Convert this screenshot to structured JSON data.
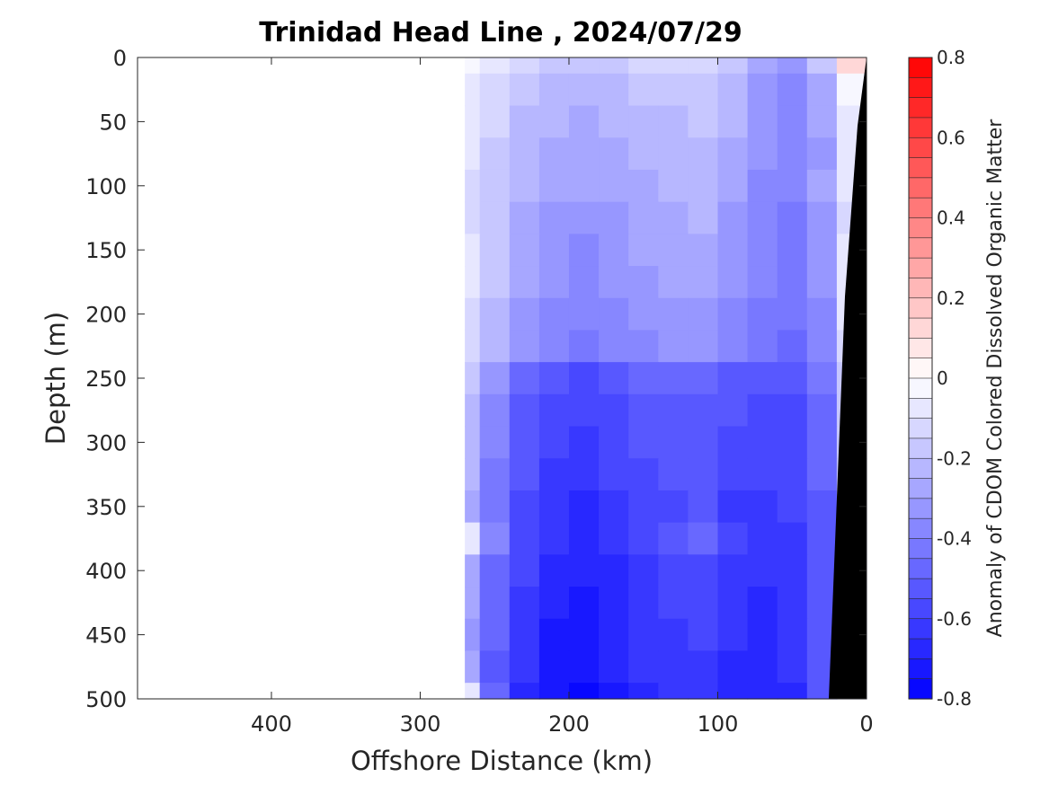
{
  "chart_data": {
    "type": "heatmap",
    "title": "Trinidad Head Line , 2024/07/29",
    "xlabel": "Offshore Distance (km)",
    "ylabel": "Depth (m)",
    "xlim": [
      490,
      0
    ],
    "ylim": [
      0,
      500
    ],
    "x_reversed": true,
    "y_reversed": true,
    "x_ticks": [
      "400",
      "300",
      "200",
      "100",
      "0"
    ],
    "y_ticks": [
      "0",
      "50",
      "100",
      "150",
      "200",
      "250",
      "300",
      "350",
      "400",
      "450",
      "500"
    ],
    "colorbar": {
      "label": "Anomaly of CDOM Colored Dissolved Organic Matter",
      "range": [
        -0.8,
        0.8
      ],
      "tick_labels": [
        "0.8",
        "0.6",
        "0.4",
        "0.2",
        "0",
        "-0.2",
        "-0.4",
        "-0.6",
        "-0.8"
      ],
      "tick_values": [
        0.8,
        0.6,
        0.4,
        0.2,
        0,
        -0.2,
        -0.4,
        -0.6,
        -0.8
      ],
      "levels": 32,
      "low_color": "#0000ff",
      "mid_color": "#ffffff",
      "high_color": "#ff0000"
    },
    "data_extent_km": [
      270,
      0
    ],
    "depth_levels": [
      0,
      25,
      50,
      75,
      100,
      125,
      150,
      175,
      200,
      225,
      250,
      275,
      300,
      325,
      350,
      375,
      400,
      425,
      450,
      475,
      500
    ],
    "column_km": [
      270,
      250,
      230,
      210,
      190,
      170,
      150,
      130,
      110,
      90,
      70,
      50,
      30,
      10
    ],
    "values": [
      [
        -0.05,
        -0.1,
        -0.15,
        -0.2,
        -0.2,
        -0.18,
        -0.15,
        -0.15,
        -0.12,
        -0.2,
        -0.3,
        -0.35,
        -0.2,
        0.1
      ],
      [
        -0.08,
        -0.12,
        -0.2,
        -0.22,
        -0.25,
        -0.22,
        -0.2,
        -0.2,
        -0.18,
        -0.25,
        -0.35,
        -0.38,
        -0.28,
        -0.05
      ],
      [
        -0.1,
        -0.15,
        -0.22,
        -0.25,
        -0.28,
        -0.25,
        -0.22,
        -0.22,
        -0.2,
        -0.25,
        -0.32,
        -0.38,
        -0.3,
        -0.1
      ],
      [
        -0.1,
        -0.18,
        -0.25,
        -0.28,
        -0.3,
        -0.28,
        -0.25,
        -0.25,
        -0.22,
        -0.28,
        -0.35,
        -0.4,
        -0.32,
        -0.1
      ],
      [
        -0.12,
        -0.2,
        -0.25,
        -0.3,
        -0.3,
        -0.28,
        -0.28,
        -0.25,
        -0.25,
        -0.3,
        -0.38,
        -0.4,
        -0.3,
        -0.1
      ],
      [
        -0.12,
        -0.2,
        -0.28,
        -0.32,
        -0.35,
        -0.32,
        -0.28,
        -0.28,
        -0.25,
        -0.32,
        -0.38,
        -0.42,
        -0.32,
        -0.12
      ],
      [
        -0.1,
        -0.18,
        -0.28,
        -0.35,
        -0.38,
        -0.35,
        -0.3,
        -0.28,
        -0.28,
        -0.32,
        -0.4,
        -0.42,
        -0.35,
        -0.1
      ],
      [
        -0.1,
        -0.2,
        -0.3,
        -0.35,
        -0.38,
        -0.35,
        -0.32,
        -0.3,
        -0.3,
        -0.35,
        -0.4,
        -0.45,
        -0.35,
        -0.1
      ],
      [
        -0.12,
        -0.22,
        -0.32,
        -0.38,
        -0.4,
        -0.38,
        -0.35,
        -0.32,
        -0.32,
        -0.38,
        -0.42,
        -0.45,
        -0.38,
        -0.1
      ],
      [
        -0.15,
        -0.25,
        -0.35,
        -0.4,
        -0.42,
        -0.4,
        -0.38,
        -0.35,
        -0.35,
        -0.4,
        -0.45,
        -0.48,
        -0.4,
        -0.15
      ],
      [
        -0.2,
        -0.35,
        -0.5,
        -0.55,
        -0.6,
        -0.55,
        -0.5,
        -0.5,
        -0.5,
        -0.55,
        -0.55,
        -0.55,
        -0.45,
        -0.2
      ],
      [
        -0.22,
        -0.38,
        -0.52,
        -0.58,
        -0.6,
        -0.58,
        -0.55,
        -0.52,
        -0.52,
        -0.55,
        -0.58,
        -0.58,
        -0.48,
        -0.2
      ],
      [
        -0.25,
        -0.4,
        -0.55,
        -0.6,
        -0.62,
        -0.6,
        -0.55,
        -0.55,
        -0.52,
        -0.58,
        -0.6,
        -0.58,
        -0.5,
        -0.2
      ],
      [
        -0.25,
        -0.42,
        -0.55,
        -0.62,
        -0.65,
        -0.6,
        -0.58,
        -0.55,
        -0.55,
        -0.6,
        -0.6,
        -0.6,
        -0.5,
        -0.2
      ],
      [
        -0.28,
        -0.45,
        -0.58,
        -0.65,
        -0.68,
        -0.62,
        -0.58,
        -0.58,
        -0.55,
        -0.62,
        -0.62,
        -0.6,
        -0.52,
        -0.2
      ],
      [
        -0.1,
        -0.4,
        -0.58,
        -0.65,
        -0.68,
        -0.65,
        -0.6,
        -0.55,
        -0.5,
        -0.6,
        -0.62,
        -0.62,
        -0.52,
        -0.2
      ],
      [
        -0.3,
        -0.48,
        -0.6,
        -0.68,
        -0.7,
        -0.66,
        -0.62,
        -0.6,
        -0.58,
        -0.62,
        -0.65,
        -0.62,
        -0.55,
        -0.2
      ],
      [
        -0.3,
        -0.5,
        -0.62,
        -0.7,
        -0.72,
        -0.68,
        -0.62,
        -0.6,
        -0.6,
        -0.65,
        -0.68,
        -0.65,
        -0.55,
        -0.2
      ],
      [
        -0.32,
        -0.5,
        -0.65,
        -0.72,
        -0.72,
        -0.7,
        -0.65,
        -0.62,
        -0.6,
        -0.65,
        -0.68,
        -0.65,
        -0.55,
        -0.2
      ],
      [
        -0.3,
        -0.52,
        -0.65,
        -0.72,
        -0.75,
        -0.7,
        -0.65,
        -0.62,
        -0.62,
        -0.68,
        -0.7,
        -0.65,
        -0.55,
        -0.2
      ],
      [
        -0.1,
        -0.5,
        -0.66,
        -0.74,
        -0.78,
        -0.72,
        -0.66,
        -0.64,
        -0.62,
        -0.68,
        -0.7,
        -0.66,
        -0.55,
        -0.2
      ]
    ]
  }
}
